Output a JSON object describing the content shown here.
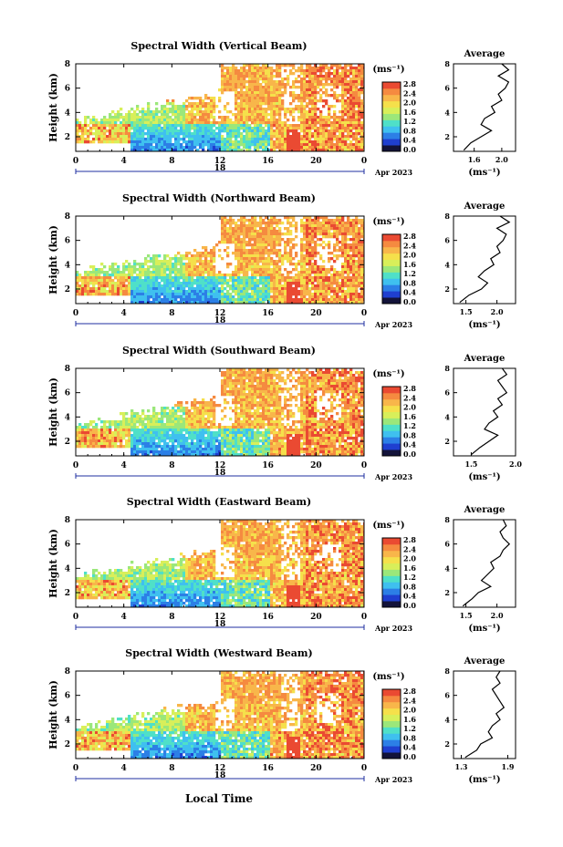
{
  "colors": {
    "scale": [
      "#13133a",
      "#1f3fd0",
      "#2c7fe6",
      "#3fc0ef",
      "#4fe0c8",
      "#9be77a",
      "#d8ef5a",
      "#f5e04b",
      "#f8b64a",
      "#f58a40",
      "#ea4a32"
    ],
    "background": "#ffffff"
  },
  "common": {
    "x_ticks": [
      "0",
      "4",
      "8",
      "12",
      "16",
      "20",
      "0"
    ],
    "date_day": "18",
    "date_month": "Apr 2023",
    "y_ticks": [
      "2",
      "4",
      "6",
      "8"
    ],
    "ylabel": "Height (km)",
    "cb_unit": "(ms⁻¹)",
    "cb_ticks": [
      "0.0",
      "0.4",
      "0.8",
      "1.2",
      "1.6",
      "2.0",
      "2.4",
      "2.8"
    ],
    "avg_title": "Average",
    "avg_unit": "(ms⁻¹)",
    "xlabel": "Local Time"
  },
  "chart_data": [
    {
      "type": "heatmap",
      "title": "Spectral Width (Vertical Beam)",
      "x_range_hours": [
        0,
        24
      ],
      "y_range_km": [
        0.8,
        8
      ],
      "z_range": [
        0,
        2.8
      ],
      "average_profile": {
        "type": "line",
        "xticks": [
          "1.6",
          "2.0"
        ],
        "xlim": [
          1.3,
          2.2
        ],
        "height_km": [
          0.9,
          1.5,
          2.0,
          2.5,
          3.0,
          3.5,
          4.0,
          4.5,
          5.0,
          5.5,
          6.0,
          6.5,
          7.0,
          7.5,
          8.0
        ],
        "width_ms": [
          1.45,
          1.55,
          1.7,
          1.85,
          1.7,
          1.75,
          1.9,
          1.85,
          2.0,
          1.95,
          2.05,
          2.1,
          1.95,
          2.1,
          2.0
        ]
      }
    },
    {
      "type": "heatmap",
      "title": "Spectral Width (Northward Beam)",
      "x_range_hours": [
        0,
        24
      ],
      "y_range_km": [
        0.8,
        8
      ],
      "z_range": [
        0,
        2.8
      ],
      "average_profile": {
        "type": "line",
        "xticks": [
          "1.5",
          "2.0"
        ],
        "xlim": [
          1.3,
          2.3
        ],
        "height_km": [
          0.9,
          1.5,
          2.0,
          2.5,
          3.0,
          3.5,
          4.0,
          4.5,
          5.0,
          5.5,
          6.0,
          6.5,
          7.0,
          7.5,
          8.0
        ],
        "width_ms": [
          1.4,
          1.55,
          1.75,
          1.85,
          1.7,
          1.8,
          1.95,
          1.9,
          2.05,
          2.0,
          2.1,
          2.15,
          2.0,
          2.2,
          2.05
        ]
      }
    },
    {
      "type": "heatmap",
      "title": "Spectral Width (Southward Beam)",
      "x_range_hours": [
        0,
        24
      ],
      "y_range_km": [
        0.8,
        8
      ],
      "z_range": [
        0,
        2.8
      ],
      "average_profile": {
        "type": "line",
        "xticks": [
          "1.5",
          "2.0"
        ],
        "xlim": [
          1.3,
          2.0
        ],
        "height_km": [
          0.9,
          1.5,
          2.0,
          2.5,
          3.0,
          3.5,
          4.0,
          4.5,
          5.0,
          5.5,
          6.0,
          6.5,
          7.0,
          7.5,
          8.0
        ],
        "width_ms": [
          1.5,
          1.6,
          1.7,
          1.8,
          1.65,
          1.7,
          1.8,
          1.75,
          1.85,
          1.8,
          1.9,
          1.85,
          1.8,
          1.9,
          1.85
        ]
      }
    },
    {
      "type": "heatmap",
      "title": "Spectral Width (Eastward Beam)",
      "x_range_hours": [
        0,
        24
      ],
      "y_range_km": [
        0.8,
        8
      ],
      "z_range": [
        0,
        2.8
      ],
      "average_profile": {
        "type": "line",
        "xticks": [
          "1.5",
          "2.0"
        ],
        "xlim": [
          1.3,
          2.3
        ],
        "height_km": [
          0.9,
          1.5,
          2.0,
          2.5,
          3.0,
          3.5,
          4.0,
          4.5,
          5.0,
          5.5,
          6.0,
          6.5,
          7.0,
          7.5,
          8.0
        ],
        "width_ms": [
          1.45,
          1.6,
          1.7,
          1.9,
          1.75,
          1.85,
          1.95,
          1.9,
          2.05,
          2.1,
          2.2,
          2.1,
          2.05,
          2.15,
          2.1
        ]
      }
    },
    {
      "type": "heatmap",
      "title": "Spectral Width (Westward Beam)",
      "x_range_hours": [
        0,
        24
      ],
      "y_range_km": [
        0.8,
        8
      ],
      "z_range": [
        0,
        2.8
      ],
      "average_profile": {
        "type": "line",
        "xticks": [
          "1.3",
          "1.9"
        ],
        "xlim": [
          1.2,
          2.0
        ],
        "height_km": [
          0.9,
          1.5,
          2.0,
          2.5,
          3.0,
          3.5,
          4.0,
          4.5,
          5.0,
          5.5,
          6.0,
          6.5,
          7.0,
          7.5,
          8.0
        ],
        "width_ms": [
          1.35,
          1.5,
          1.55,
          1.7,
          1.65,
          1.7,
          1.8,
          1.75,
          1.85,
          1.8,
          1.75,
          1.7,
          1.8,
          1.75,
          1.8
        ]
      }
    }
  ]
}
